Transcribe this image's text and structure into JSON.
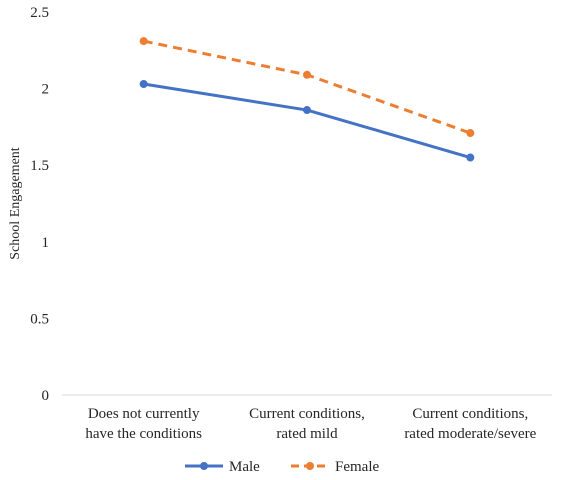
{
  "chart_data": {
    "type": "line",
    "title": "",
    "xlabel": "",
    "ylabel": "School Engagement",
    "ylim": [
      0,
      2.5
    ],
    "yticks": [
      "0",
      "0.5",
      "1",
      "1.5",
      "2",
      "2.5"
    ],
    "categories": [
      [
        "Does not currently",
        "have the conditions"
      ],
      [
        "Current conditions,",
        "rated mild"
      ],
      [
        "Current conditions,",
        "rated moderate/severe"
      ]
    ],
    "series": [
      {
        "name": "Male",
        "values": [
          2.03,
          1.86,
          1.55
        ],
        "color": "#4472C4",
        "style": "solid"
      },
      {
        "name": "Female",
        "values": [
          2.31,
          2.09,
          1.71
        ],
        "color": "#ED7D31",
        "style": "dashed"
      }
    ],
    "grid": false,
    "legend_position": "bottom"
  }
}
